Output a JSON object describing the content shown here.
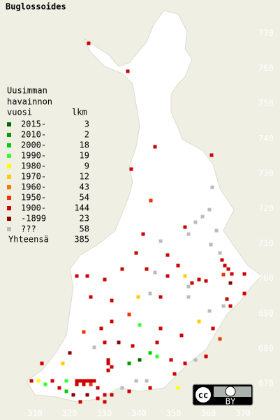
{
  "title": "Buglossoides",
  "legend": {
    "heading": [
      "Uusimman",
      "havainnon",
      "vuosi"
    ],
    "count_heading": "lkm",
    "rows": [
      {
        "label": "2015-",
        "count": 3,
        "color": "#006600"
      },
      {
        "label": "2010-",
        "count": 2,
        "color": "#009900"
      },
      {
        "label": "2000-",
        "count": 18,
        "color": "#00cc00"
      },
      {
        "label": "1990-",
        "count": 19,
        "color": "#33ff33"
      },
      {
        "label": "1980-",
        "count": 9,
        "color": "#ffff00"
      },
      {
        "label": "1970-",
        "count": 12,
        "color": "#ffcc00"
      },
      {
        "label": "1960-",
        "count": 43,
        "color": "#ff7700"
      },
      {
        "label": "1950-",
        "count": 54,
        "color": "#ee3300"
      },
      {
        "label": "1900-",
        "count": 144,
        "color": "#cc0000"
      },
      {
        "label": "-1899",
        "count": 23,
        "color": "#880000"
      },
      {
        "label": "???",
        "count": 58,
        "color": "#bbbbbb"
      }
    ],
    "total_label": "Yhteensä",
    "total": 385
  },
  "y_axis_labels": [
    770,
    760,
    750,
    740,
    730,
    720,
    710,
    700,
    690,
    680,
    670
  ],
  "x_axis_labels": [
    310,
    320,
    330,
    340,
    350,
    360,
    370
  ],
  "license": {
    "icon": "cc",
    "by": "BY"
  }
}
